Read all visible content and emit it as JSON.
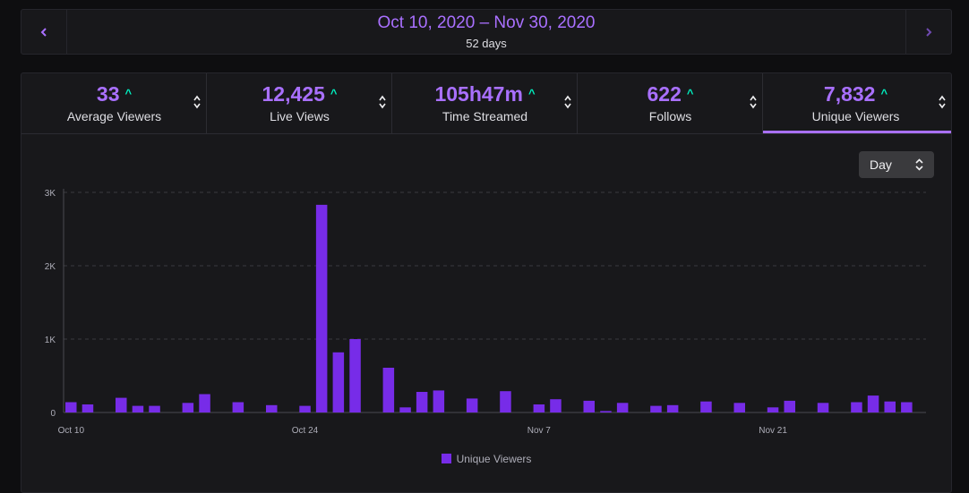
{
  "date_range": {
    "title": "Oct 10, 2020 – Nov 30, 2020",
    "subtitle": "52 days",
    "prev_icon": "chevron-left-icon",
    "next_icon": "chevron-right-icon"
  },
  "stats": [
    {
      "value": "33",
      "label": "Average Viewers",
      "trend": "up"
    },
    {
      "value": "12,425",
      "label": "Live Views",
      "trend": "up"
    },
    {
      "value": "105h47m",
      "label": "Time Streamed",
      "trend": "up"
    },
    {
      "value": "622",
      "label": "Follows",
      "trend": "up"
    },
    {
      "value": "7,832",
      "label": "Unique Viewers",
      "trend": "up",
      "active": true
    }
  ],
  "granularity": {
    "selected": "Day"
  },
  "colors": {
    "accent": "#a970ff",
    "bar": "#772ce8",
    "trend_up": "#00f0c0"
  },
  "chart_data": {
    "type": "bar",
    "x_start_label": "Oct 10",
    "x_tick_labels": [
      "Oct 10",
      "Oct 24",
      "Nov 7",
      "Nov 21"
    ],
    "x_tick_index": [
      0,
      14,
      28,
      42
    ],
    "y_tick_labels": [
      "0",
      "1K",
      "2K",
      "3K"
    ],
    "y_tick_values": [
      0,
      1000,
      2000,
      3000
    ],
    "ylim": [
      0,
      3000
    ],
    "grid": true,
    "legend_position": "bottom",
    "series": [
      {
        "name": "Unique Viewers",
        "values": [
          140,
          110,
          0,
          200,
          90,
          90,
          0,
          130,
          250,
          0,
          140,
          0,
          100,
          0,
          90,
          2830,
          820,
          1000,
          0,
          610,
          70,
          280,
          300,
          0,
          190,
          0,
          290,
          0,
          110,
          180,
          0,
          160,
          20,
          130,
          0,
          90,
          100,
          0,
          150,
          0,
          130,
          0,
          70,
          160,
          0,
          130,
          0,
          140,
          230,
          150,
          140,
          0
        ]
      }
    ]
  }
}
